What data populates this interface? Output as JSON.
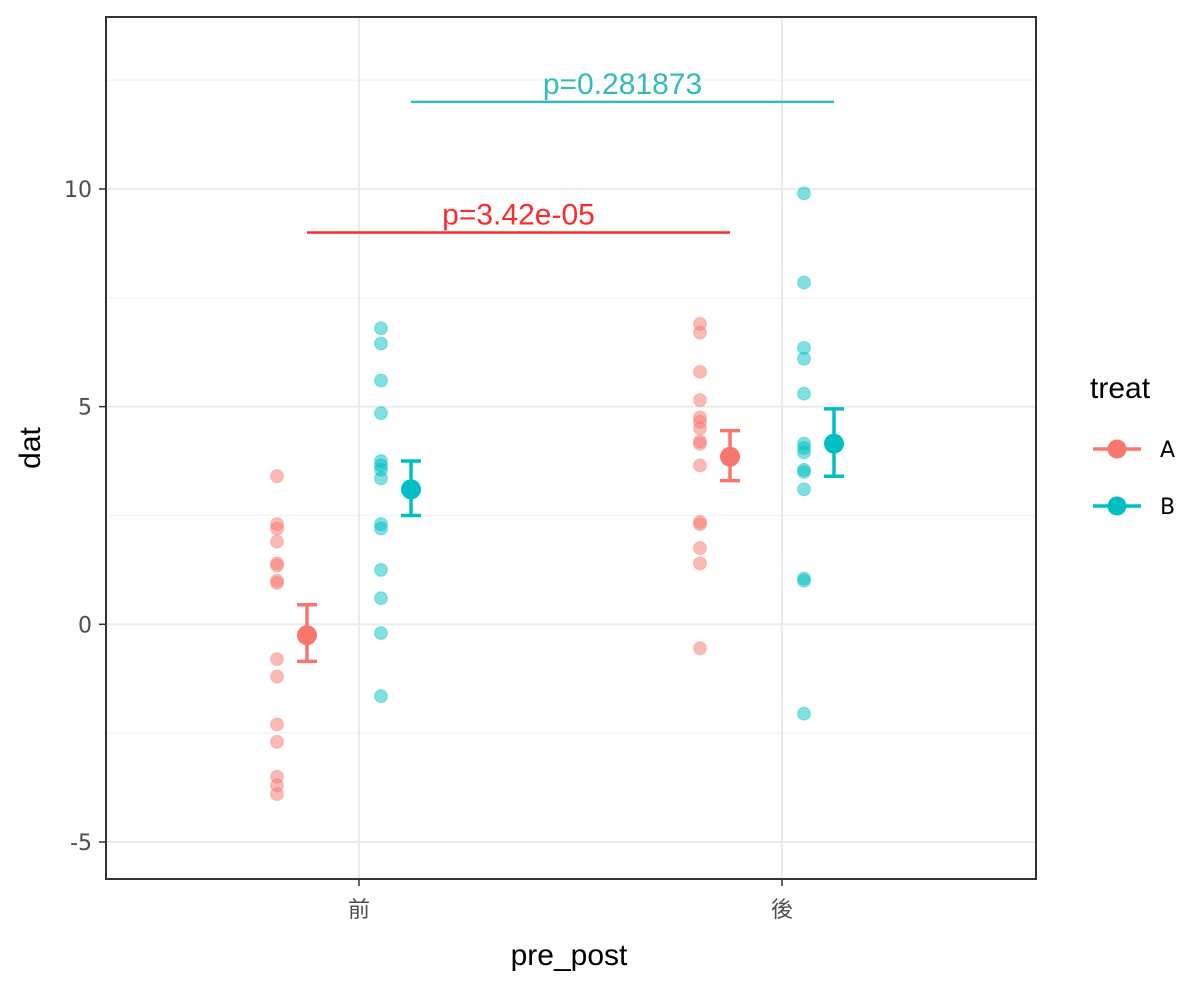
{
  "chart_data": {
    "type": "scatter",
    "xlabel": "pre_post",
    "ylabel": "dat",
    "categories": [
      "前",
      "後"
    ],
    "yticks": [
      -5,
      0,
      5,
      10
    ],
    "ylim": [
      -5.85,
      13.95
    ],
    "grid": true,
    "legend": {
      "title": "treat",
      "placement": "right",
      "entries": [
        "A",
        "B"
      ]
    },
    "colors": {
      "A": "#f8766d",
      "B": "#00bfc4"
    },
    "series": [
      {
        "name": "A",
        "points": [
          {
            "category": "前",
            "values": [
              3.4,
              2.3,
              2.2,
              1.9,
              1.4,
              1.35,
              1.0,
              0.95,
              -0.8,
              -1.2,
              -2.3,
              -2.7,
              -3.5,
              -3.7,
              -3.9
            ]
          },
          {
            "category": "後",
            "values": [
              6.9,
              6.7,
              5.8,
              5.15,
              4.75,
              4.65,
              4.5,
              4.2,
              4.15,
              3.65,
              2.35,
              2.3,
              1.75,
              1.4,
              -0.55
            ]
          }
        ],
        "summary": [
          {
            "category": "前",
            "mean": -0.25,
            "lower": -0.85,
            "upper": 0.45
          },
          {
            "category": "後",
            "mean": 3.85,
            "lower": 3.3,
            "upper": 4.45
          }
        ]
      },
      {
        "name": "B",
        "points": [
          {
            "category": "前",
            "values": [
              6.8,
              6.45,
              5.6,
              4.85,
              3.75,
              3.65,
              3.55,
              3.35,
              2.3,
              2.2,
              1.25,
              0.6,
              -0.2,
              -1.65
            ]
          },
          {
            "category": "後",
            "values": [
              9.9,
              7.85,
              6.35,
              6.1,
              5.3,
              4.15,
              4.05,
              3.95,
              3.55,
              3.5,
              3.1,
              1.05,
              1.0,
              -2.05
            ]
          }
        ],
        "summary": [
          {
            "category": "前",
            "mean": 3.1,
            "lower": 2.5,
            "upper": 3.75
          },
          {
            "category": "後",
            "mean": 4.15,
            "lower": 3.4,
            "upper": 4.95
          }
        ]
      }
    ],
    "annotations": [
      {
        "text": "p=3.42e-05",
        "y": 9.0,
        "from": "前",
        "to": "後",
        "series": "A",
        "color": "#ff2b2b"
      },
      {
        "text": "p=0.281873",
        "y": 12.0,
        "from": "前",
        "to": "後",
        "series": "B",
        "color": "#33bbbb"
      }
    ]
  }
}
